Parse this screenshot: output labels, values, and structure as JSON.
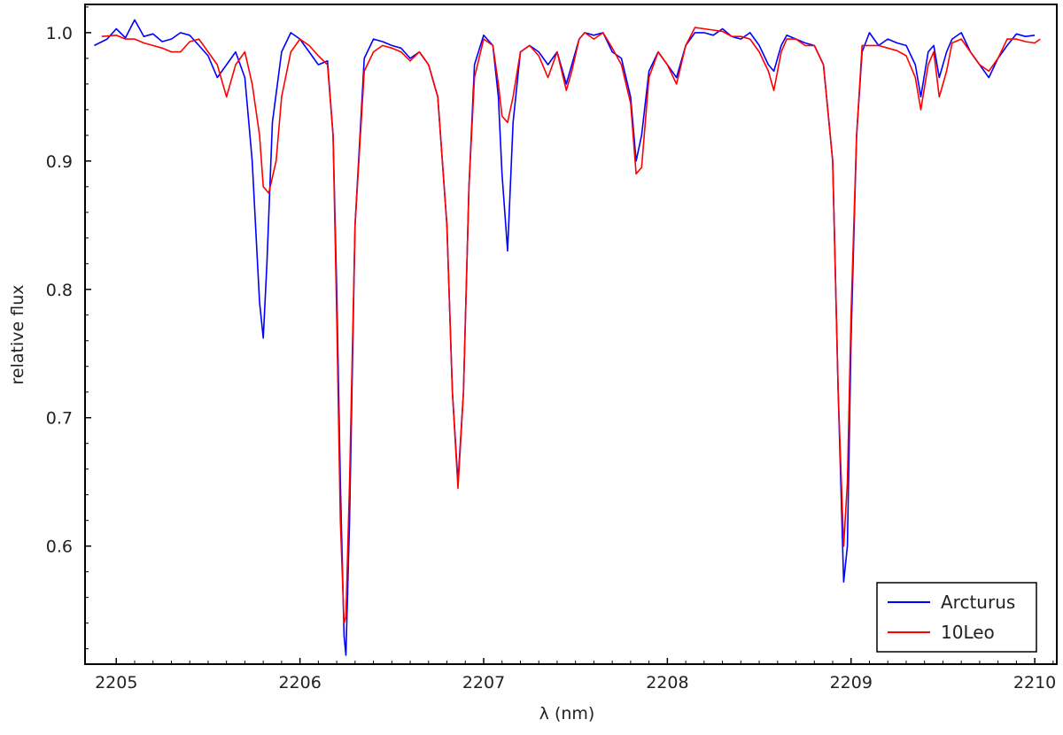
{
  "chart_data": {
    "type": "line",
    "title": "",
    "xlabel": "λ (nm)",
    "ylabel": "relative flux",
    "xlim": [
      2204.83,
      2210.12
    ],
    "ylim": [
      0.508,
      1.022
    ],
    "x_ticks": [
      2205,
      2206,
      2207,
      2208,
      2209,
      2210
    ],
    "y_ticks": [
      0.6,
      0.7,
      0.8,
      0.9,
      1.0
    ],
    "x_tick_labels": [
      "2205",
      "2206",
      "2207",
      "2208",
      "2209",
      "2210"
    ],
    "y_tick_labels": [
      "0.6",
      "0.7",
      "0.8",
      "0.9",
      "1.0"
    ],
    "grid": false,
    "legend_position": "bottom-right",
    "series": [
      {
        "name": "Arcturus",
        "color": "#0000ff",
        "x": [
          2204.88,
          2204.95,
          2205.0,
          2205.05,
          2205.1,
          2205.15,
          2205.2,
          2205.25,
          2205.3,
          2205.35,
          2205.4,
          2205.45,
          2205.5,
          2205.55,
          2205.6,
          2205.65,
          2205.7,
          2205.74,
          2205.78,
          2205.8,
          2205.82,
          2205.85,
          2205.9,
          2205.95,
          2206.0,
          2206.05,
          2206.1,
          2206.15,
          2206.18,
          2206.2,
          2206.22,
          2206.24,
          2206.25,
          2206.27,
          2206.3,
          2206.35,
          2206.4,
          2206.45,
          2206.5,
          2206.55,
          2206.6,
          2206.65,
          2206.7,
          2206.75,
          2206.8,
          2206.83,
          2206.86,
          2206.89,
          2206.92,
          2206.95,
          2207.0,
          2207.05,
          2207.08,
          2207.1,
          2207.13,
          2207.16,
          2207.2,
          2207.25,
          2207.3,
          2207.35,
          2207.4,
          2207.45,
          2207.48,
          2207.52,
          2207.55,
          2207.6,
          2207.65,
          2207.7,
          2207.75,
          2207.8,
          2207.83,
          2207.86,
          2207.9,
          2207.95,
          2208.0,
          2208.05,
          2208.1,
          2208.15,
          2208.2,
          2208.25,
          2208.3,
          2208.35,
          2208.4,
          2208.45,
          2208.5,
          2208.55,
          2208.58,
          2208.62,
          2208.65,
          2208.7,
          2208.75,
          2208.8,
          2208.85,
          2208.9,
          2208.93,
          2208.96,
          2208.98,
          2209.0,
          2209.03,
          2209.06,
          2209.1,
          2209.15,
          2209.2,
          2209.25,
          2209.3,
          2209.35,
          2209.38,
          2209.42,
          2209.45,
          2209.48,
          2209.52,
          2209.55,
          2209.6,
          2209.65,
          2209.7,
          2209.75,
          2209.8,
          2209.85,
          2209.9,
          2209.95,
          2210.0
        ],
        "values": [
          0.99,
          0.995,
          1.003,
          0.996,
          1.01,
          0.997,
          0.999,
          0.993,
          0.995,
          1.0,
          0.998,
          0.99,
          0.982,
          0.965,
          0.975,
          0.985,
          0.965,
          0.9,
          0.79,
          0.762,
          0.82,
          0.93,
          0.985,
          1.0,
          0.995,
          0.985,
          0.975,
          0.978,
          0.92,
          0.8,
          0.65,
          0.53,
          0.515,
          0.62,
          0.85,
          0.98,
          0.995,
          0.993,
          0.99,
          0.988,
          0.98,
          0.985,
          0.975,
          0.95,
          0.85,
          0.72,
          0.65,
          0.72,
          0.88,
          0.975,
          0.998,
          0.99,
          0.95,
          0.89,
          0.83,
          0.93,
          0.985,
          0.99,
          0.985,
          0.975,
          0.985,
          0.96,
          0.975,
          0.995,
          1.0,
          0.998,
          1.0,
          0.985,
          0.98,
          0.95,
          0.9,
          0.92,
          0.97,
          0.985,
          0.975,
          0.965,
          0.99,
          1.0,
          1.0,
          0.998,
          1.003,
          0.997,
          0.995,
          1.0,
          0.99,
          0.975,
          0.97,
          0.99,
          0.998,
          0.995,
          0.992,
          0.99,
          0.975,
          0.9,
          0.72,
          0.572,
          0.6,
          0.76,
          0.92,
          0.985,
          1.0,
          0.99,
          0.995,
          0.992,
          0.99,
          0.975,
          0.95,
          0.985,
          0.99,
          0.965,
          0.985,
          0.995,
          1.0,
          0.985,
          0.975,
          0.965,
          0.98,
          0.99,
          0.999,
          0.997,
          0.998
        ]
      },
      {
        "name": "10Leo",
        "color": "#ff0000",
        "x": [
          2204.92,
          2205.0,
          2205.05,
          2205.1,
          2205.15,
          2205.2,
          2205.25,
          2205.3,
          2205.35,
          2205.4,
          2205.45,
          2205.5,
          2205.55,
          2205.6,
          2205.65,
          2205.7,
          2205.74,
          2205.78,
          2205.8,
          2205.83,
          2205.87,
          2205.9,
          2205.95,
          2206.0,
          2206.05,
          2206.1,
          2206.15,
          2206.18,
          2206.2,
          2206.22,
          2206.24,
          2206.25,
          2206.27,
          2206.3,
          2206.35,
          2206.4,
          2206.45,
          2206.5,
          2206.55,
          2206.6,
          2206.65,
          2206.7,
          2206.75,
          2206.8,
          2206.83,
          2206.86,
          2206.89,
          2206.92,
          2206.95,
          2207.0,
          2207.05,
          2207.08,
          2207.1,
          2207.13,
          2207.16,
          2207.2,
          2207.25,
          2207.3,
          2207.35,
          2207.4,
          2207.45,
          2207.48,
          2207.52,
          2207.55,
          2207.6,
          2207.65,
          2207.7,
          2207.75,
          2207.8,
          2207.83,
          2207.86,
          2207.9,
          2207.95,
          2208.0,
          2208.05,
          2208.1,
          2208.15,
          2208.2,
          2208.25,
          2208.3,
          2208.35,
          2208.4,
          2208.45,
          2208.5,
          2208.55,
          2208.58,
          2208.62,
          2208.65,
          2208.7,
          2208.75,
          2208.8,
          2208.85,
          2208.9,
          2208.93,
          2208.96,
          2208.98,
          2209.0,
          2209.03,
          2209.06,
          2209.1,
          2209.15,
          2209.2,
          2209.25,
          2209.3,
          2209.35,
          2209.38,
          2209.42,
          2209.45,
          2209.48,
          2209.52,
          2209.55,
          2209.6,
          2209.65,
          2209.7,
          2209.75,
          2209.8,
          2209.85,
          2209.9,
          2209.95,
          2210.0,
          2210.03
        ],
        "values": [
          0.997,
          0.998,
          0.995,
          0.995,
          0.992,
          0.99,
          0.988,
          0.985,
          0.985,
          0.993,
          0.995,
          0.985,
          0.975,
          0.95,
          0.975,
          0.985,
          0.96,
          0.92,
          0.88,
          0.875,
          0.9,
          0.95,
          0.985,
          0.995,
          0.99,
          0.982,
          0.975,
          0.92,
          0.78,
          0.62,
          0.54,
          0.545,
          0.65,
          0.85,
          0.97,
          0.985,
          0.99,
          0.988,
          0.985,
          0.978,
          0.985,
          0.975,
          0.95,
          0.85,
          0.72,
          0.645,
          0.72,
          0.88,
          0.965,
          0.995,
          0.99,
          0.96,
          0.935,
          0.93,
          0.95,
          0.985,
          0.99,
          0.982,
          0.965,
          0.985,
          0.955,
          0.97,
          0.995,
          1.0,
          0.995,
          1.0,
          0.988,
          0.975,
          0.945,
          0.89,
          0.895,
          0.965,
          0.985,
          0.975,
          0.96,
          0.99,
          1.004,
          1.003,
          1.002,
          1.001,
          0.997,
          0.997,
          0.995,
          0.985,
          0.97,
          0.955,
          0.985,
          0.995,
          0.995,
          0.99,
          0.99,
          0.975,
          0.9,
          0.72,
          0.6,
          0.65,
          0.78,
          0.92,
          0.99,
          0.99,
          0.99,
          0.988,
          0.986,
          0.982,
          0.965,
          0.94,
          0.975,
          0.985,
          0.95,
          0.97,
          0.992,
          0.995,
          0.985,
          0.975,
          0.97,
          0.98,
          0.995,
          0.995,
          0.993,
          0.992,
          0.995
        ]
      }
    ]
  }
}
